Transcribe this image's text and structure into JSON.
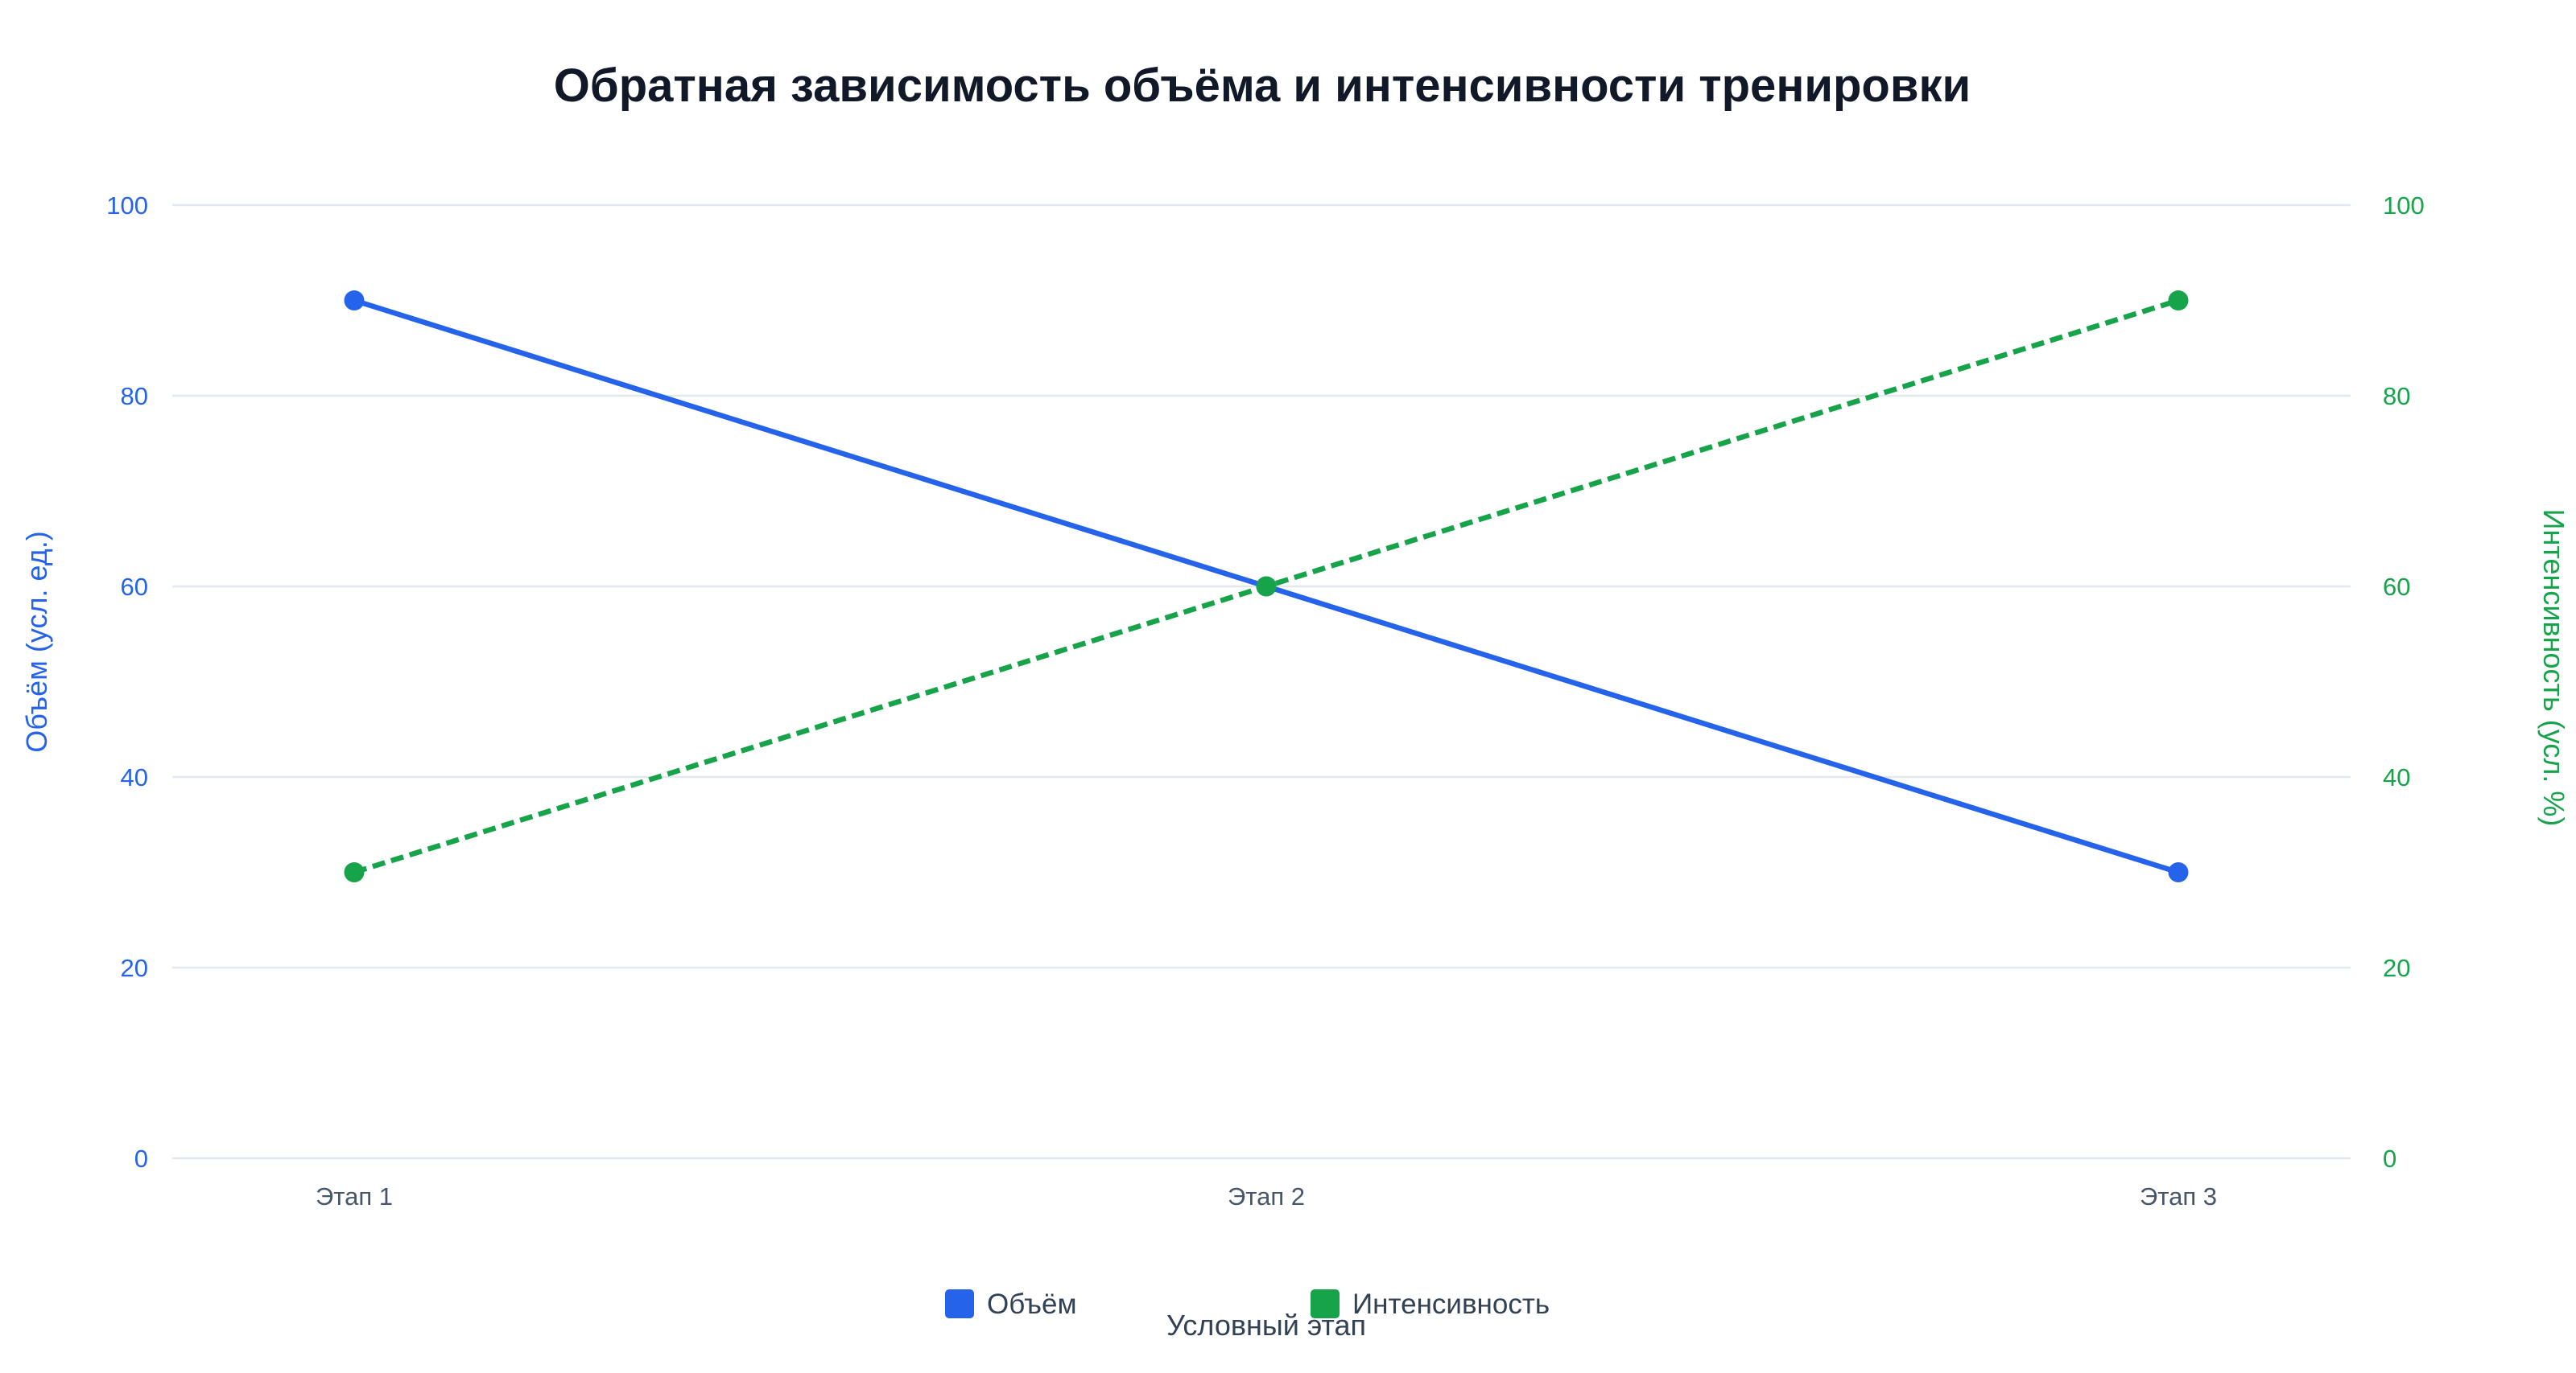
{
  "chart_data": {
    "type": "line",
    "title": "Обратная зависимость объёма и интенсивности тренировки",
    "xlabel": "Условный этап",
    "ylabel_left": "Объём (усл. ед.)",
    "ylabel_right": "Интенсивность (усл. %)",
    "categories": [
      "Этап 1",
      "Этап 2",
      "Этап 3"
    ],
    "ylim_left": [
      0,
      100
    ],
    "ylim_right": [
      0,
      100
    ],
    "yticks": [
      0,
      20,
      40,
      60,
      80,
      100
    ],
    "grid": true,
    "legend_position": "bottom-center",
    "series": [
      {
        "name": "Объём",
        "values": [
          90,
          60,
          30
        ],
        "axis": "left",
        "color": "#2563eb",
        "style": "solid"
      },
      {
        "name": "Интенсивность",
        "values": [
          30,
          60,
          90
        ],
        "axis": "right",
        "color": "#16a34a",
        "style": "dashed"
      }
    ]
  }
}
